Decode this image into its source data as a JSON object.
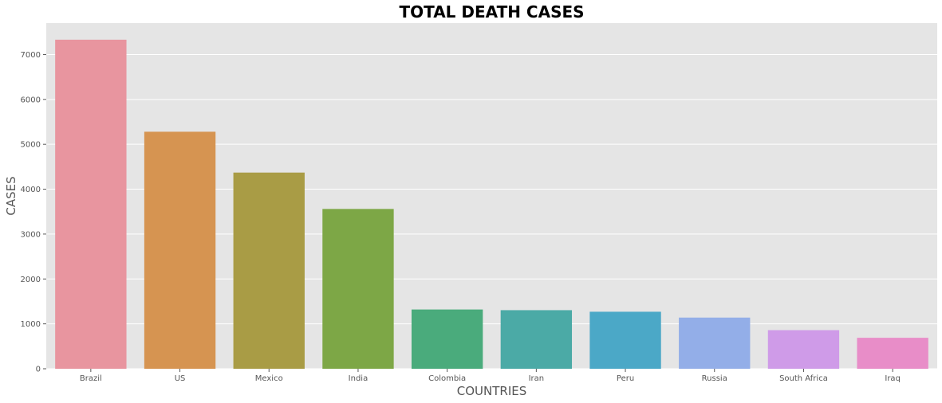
{
  "chart_data": {
    "type": "bar",
    "title": "TOTAL DEATH CASES",
    "xlabel": "COUNTRIES",
    "ylabel": "CASES",
    "categories": [
      "Brazil",
      "US",
      "Mexico",
      "India",
      "Colombia",
      "Iran",
      "Peru",
      "Russia",
      "South Africa",
      "Iraq"
    ],
    "values": [
      7330,
      5280,
      4370,
      3560,
      1320,
      1305,
      1270,
      1140,
      860,
      690
    ],
    "colors": [
      "#e8959f",
      "#d69451",
      "#a99c45",
      "#7da746",
      "#4aab7c",
      "#4baaa6",
      "#4ba8c7",
      "#93aee8",
      "#cf9be8",
      "#e88dc8"
    ],
    "ylim": [
      0,
      7700
    ],
    "yticks": [
      0,
      1000,
      2000,
      3000,
      4000,
      5000,
      6000,
      7000
    ],
    "grid": true,
    "background": "#e5e5e5"
  }
}
